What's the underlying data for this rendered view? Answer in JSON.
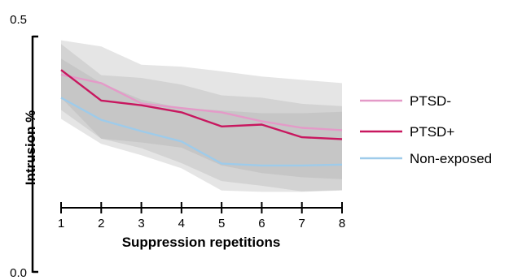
{
  "chart_data": {
    "type": "line",
    "title": "",
    "xlabel": "Suppression repetitions",
    "ylabel": "Intrusion %",
    "x": [
      1,
      2,
      3,
      4,
      5,
      6,
      7,
      8
    ],
    "xlim": [
      1,
      8
    ],
    "ylim": [
      0.0,
      0.5
    ],
    "y_tick_labels": [
      "0.0",
      "0.5"
    ],
    "x_tick_labels": [
      "1",
      "2",
      "3",
      "4",
      "5",
      "6",
      "7",
      "8"
    ],
    "grid": false,
    "legend_position": "right",
    "series": [
      {
        "name": "PTSD-",
        "color": "#e49ac8",
        "values": [
          0.419,
          0.401,
          0.358,
          0.348,
          0.339,
          0.32,
          0.306,
          0.301
        ],
        "band_lower": [
          0.344,
          0.283,
          0.275,
          0.264,
          0.226,
          0.21,
          0.201,
          0.197
        ],
        "band_upper": [
          0.492,
          0.479,
          0.44,
          0.436,
          0.426,
          0.415,
          0.408,
          0.401
        ]
      },
      {
        "name": "PTSD+",
        "color": "#c8175f",
        "values": [
          0.429,
          0.364,
          0.354,
          0.339,
          0.309,
          0.313,
          0.286,
          0.282
        ],
        "band_lower": [
          0.37,
          0.283,
          0.263,
          0.231,
          0.193,
          0.183,
          0.171,
          0.174
        ],
        "band_upper": [
          0.484,
          0.418,
          0.412,
          0.398,
          0.375,
          0.37,
          0.357,
          0.352
        ]
      },
      {
        "name": "Non-exposed",
        "color": "#9ecbea",
        "values": [
          0.37,
          0.323,
          0.299,
          0.277,
          0.23,
          0.226,
          0.226,
          0.228
        ],
        "band_lower": [
          0.325,
          0.272,
          0.248,
          0.22,
          0.173,
          0.17,
          0.17,
          0.173
        ],
        "band_upper": [
          0.453,
          0.401,
          0.366,
          0.348,
          0.343,
          0.337,
          0.337,
          0.34
        ]
      }
    ]
  }
}
